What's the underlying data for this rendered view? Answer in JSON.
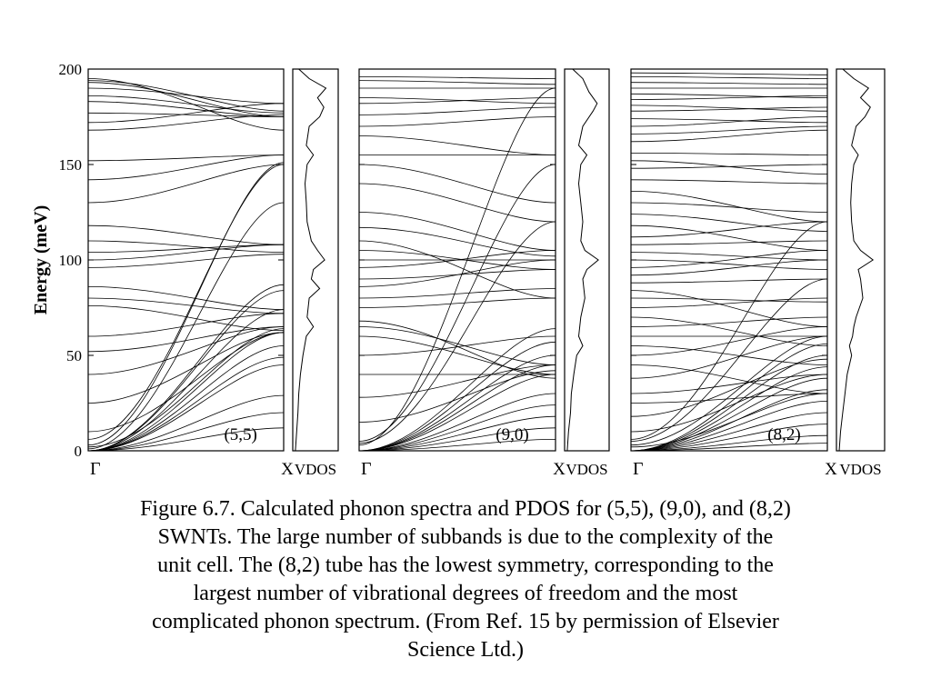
{
  "chart_data": {
    "type": "line",
    "ylabel": "Energy (meV)",
    "ylim": [
      0,
      200
    ],
    "yticks": [
      0,
      50,
      100,
      150,
      200
    ],
    "xticks": [
      "Γ",
      "X"
    ],
    "dos_label": "VDOS",
    "panels": [
      {
        "label": "(5,5)",
        "branches": [
          [
            0,
            12
          ],
          [
            0,
            20
          ],
          [
            0,
            29
          ],
          [
            0,
            45
          ],
          [
            0,
            49
          ],
          [
            0,
            55
          ],
          [
            0,
            62
          ],
          [
            0,
            74
          ],
          [
            0,
            84
          ],
          [
            0,
            87
          ],
          [
            10,
            62
          ],
          [
            25,
            62
          ],
          [
            40,
            65
          ],
          [
            52,
            65
          ],
          [
            60,
            72
          ],
          [
            76,
            63
          ],
          [
            80,
            72
          ],
          [
            86,
            74
          ],
          [
            96,
            103
          ],
          [
            100,
            108
          ],
          [
            104,
            108
          ],
          [
            110,
            104
          ],
          [
            118,
            108
          ],
          [
            130,
            150
          ],
          [
            142,
            155
          ],
          [
            152,
            155
          ],
          [
            168,
            176
          ],
          [
            172,
            182
          ],
          [
            177,
            175
          ],
          [
            183,
            175
          ],
          [
            186,
            177
          ],
          [
            190,
            182
          ],
          [
            193,
            175
          ],
          [
            194,
            178
          ],
          [
            195,
            168
          ],
          [
            2,
            64
          ],
          [
            6,
            150
          ],
          [
            3,
            151
          ],
          [
            1,
            130
          ]
        ],
        "dos": [
          [
            0,
            0.02
          ],
          [
            10,
            0.05
          ],
          [
            20,
            0.08
          ],
          [
            30,
            0.1
          ],
          [
            40,
            0.14
          ],
          [
            50,
            0.2
          ],
          [
            60,
            0.28
          ],
          [
            65,
            0.45
          ],
          [
            70,
            0.3
          ],
          [
            80,
            0.35
          ],
          [
            85,
            0.6
          ],
          [
            90,
            0.4
          ],
          [
            95,
            0.45
          ],
          [
            100,
            0.72
          ],
          [
            105,
            0.55
          ],
          [
            110,
            0.4
          ],
          [
            120,
            0.3
          ],
          [
            130,
            0.28
          ],
          [
            140,
            0.25
          ],
          [
            150,
            0.3
          ],
          [
            155,
            0.45
          ],
          [
            160,
            0.28
          ],
          [
            170,
            0.35
          ],
          [
            175,
            0.6
          ],
          [
            180,
            0.7
          ],
          [
            185,
            0.55
          ],
          [
            190,
            0.75
          ],
          [
            195,
            0.35
          ],
          [
            200,
            0.1
          ]
        ]
      },
      {
        "label": "(9,0)",
        "branches": [
          [
            0,
            6
          ],
          [
            0,
            12
          ],
          [
            0,
            18
          ],
          [
            0,
            24
          ],
          [
            0,
            30
          ],
          [
            0,
            40
          ],
          [
            0,
            45
          ],
          [
            0,
            50
          ],
          [
            0,
            57
          ],
          [
            0,
            64
          ],
          [
            15,
            42
          ],
          [
            28,
            45
          ],
          [
            40,
            40
          ],
          [
            50,
            60
          ],
          [
            60,
            40
          ],
          [
            65,
            45
          ],
          [
            68,
            38
          ],
          [
            75,
            80
          ],
          [
            80,
            85
          ],
          [
            86,
            100
          ],
          [
            90,
            95
          ],
          [
            96,
            105
          ],
          [
            100,
            100
          ],
          [
            105,
            95
          ],
          [
            110,
            80
          ],
          [
            117,
            102
          ],
          [
            125,
            105
          ],
          [
            140,
            120
          ],
          [
            150,
            130
          ],
          [
            155,
            155
          ],
          [
            165,
            155
          ],
          [
            170,
            175
          ],
          [
            176,
            180
          ],
          [
            182,
            185
          ],
          [
            185,
            182
          ],
          [
            190,
            190
          ],
          [
            194,
            192
          ],
          [
            196,
            195
          ],
          [
            3,
            190
          ],
          [
            5,
            150
          ],
          [
            4,
            120
          ]
        ],
        "dos": [
          [
            0,
            0.02
          ],
          [
            10,
            0.05
          ],
          [
            20,
            0.1
          ],
          [
            30,
            0.12
          ],
          [
            40,
            0.18
          ],
          [
            50,
            0.25
          ],
          [
            55,
            0.4
          ],
          [
            60,
            0.3
          ],
          [
            70,
            0.35
          ],
          [
            80,
            0.45
          ],
          [
            90,
            0.4
          ],
          [
            95,
            0.5
          ],
          [
            100,
            0.78
          ],
          [
            105,
            0.45
          ],
          [
            110,
            0.35
          ],
          [
            120,
            0.4
          ],
          [
            130,
            0.35
          ],
          [
            140,
            0.3
          ],
          [
            150,
            0.35
          ],
          [
            155,
            0.5
          ],
          [
            160,
            0.3
          ],
          [
            170,
            0.4
          ],
          [
            178,
            0.65
          ],
          [
            182,
            0.75
          ],
          [
            188,
            0.55
          ],
          [
            195,
            0.4
          ],
          [
            200,
            0.15
          ]
        ]
      },
      {
        "label": "(8,2)",
        "branches": [
          [
            0,
            4
          ],
          [
            0,
            8
          ],
          [
            0,
            14
          ],
          [
            0,
            20
          ],
          [
            0,
            26
          ],
          [
            0,
            32
          ],
          [
            0,
            38
          ],
          [
            0,
            44
          ],
          [
            0,
            50
          ],
          [
            0,
            56
          ],
          [
            10,
            40
          ],
          [
            18,
            48
          ],
          [
            25,
            30
          ],
          [
            30,
            40
          ],
          [
            38,
            60
          ],
          [
            45,
            30
          ],
          [
            50,
            65
          ],
          [
            55,
            45
          ],
          [
            60,
            60
          ],
          [
            65,
            70
          ],
          [
            70,
            55
          ],
          [
            75,
            80
          ],
          [
            80,
            78
          ],
          [
            84,
            65
          ],
          [
            88,
            90
          ],
          [
            92,
            100
          ],
          [
            96,
            105
          ],
          [
            100,
            95
          ],
          [
            104,
            100
          ],
          [
            108,
            110
          ],
          [
            112,
            120
          ],
          [
            118,
            105
          ],
          [
            124,
            115
          ],
          [
            130,
            125
          ],
          [
            136,
            120
          ],
          [
            142,
            140
          ],
          [
            148,
            150
          ],
          [
            152,
            145
          ],
          [
            156,
            155
          ],
          [
            162,
            168
          ],
          [
            166,
            170
          ],
          [
            170,
            175
          ],
          [
            174,
            172
          ],
          [
            178,
            180
          ],
          [
            181,
            178
          ],
          [
            184,
            186
          ],
          [
            187,
            185
          ],
          [
            190,
            190
          ],
          [
            193,
            192
          ],
          [
            196,
            195
          ],
          [
            198,
            197
          ],
          [
            2,
            30
          ],
          [
            3,
            60
          ],
          [
            5,
            90
          ],
          [
            6,
            120
          ]
        ],
        "dos": [
          [
            0,
            0.02
          ],
          [
            10,
            0.05
          ],
          [
            20,
            0.1
          ],
          [
            30,
            0.15
          ],
          [
            40,
            0.2
          ],
          [
            50,
            0.3
          ],
          [
            55,
            0.25
          ],
          [
            60,
            0.32
          ],
          [
            65,
            0.35
          ],
          [
            70,
            0.4
          ],
          [
            80,
            0.55
          ],
          [
            90,
            0.5
          ],
          [
            95,
            0.45
          ],
          [
            100,
            0.78
          ],
          [
            105,
            0.5
          ],
          [
            110,
            0.35
          ],
          [
            120,
            0.3
          ],
          [
            130,
            0.28
          ],
          [
            140,
            0.3
          ],
          [
            150,
            0.35
          ],
          [
            155,
            0.45
          ],
          [
            160,
            0.3
          ],
          [
            170,
            0.4
          ],
          [
            175,
            0.6
          ],
          [
            180,
            0.72
          ],
          [
            185,
            0.5
          ],
          [
            190,
            0.68
          ],
          [
            195,
            0.35
          ],
          [
            200,
            0.1
          ]
        ]
      }
    ]
  },
  "caption": [
    "Figure 6.7. Calculated phonon spectra and PDOS for (5,5), (9,0), and (8,2)",
    "SWNTs.  The large number of subbands is due to the complexity of the",
    "unit cell.  The (8,2) tube has the lowest symmetry, corresponding to the",
    "largest number of vibrational degrees of freedom and the most",
    "complicated phonon spectrum.  (From Ref. 15 by permission of Elsevier",
    "Science Ltd.)"
  ]
}
